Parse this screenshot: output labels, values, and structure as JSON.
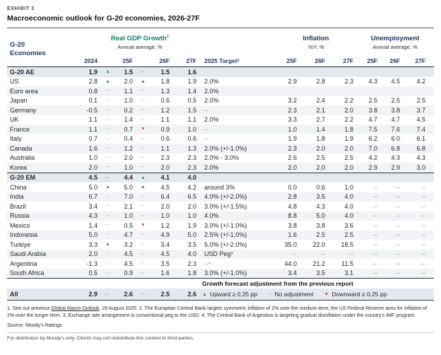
{
  "exhibit": {
    "label": "EXHIBIT 2",
    "title": "Macroeconomic outlook for G-20 economies, 2026-27F"
  },
  "indicators": {
    "up": "▲",
    "down": "▼",
    "dash": "--"
  },
  "colors": {
    "navy": "#1d3866",
    "teal": "#0f7e6d",
    "up_green": "#3f9f38",
    "down_orange": "#e8562b",
    "dash_gray": "#8c9196"
  },
  "header": {
    "economies_line1": "G-20",
    "economies_line2": "Economies",
    "gdp_title": "Real GDP Growth",
    "gdp_sup": "1",
    "gdp_subtitle": "Annual average, %",
    "target_label": "2025 Target",
    "target_sup": "2",
    "inflation_title": "Inflation",
    "inflation_subtitle": "YoY, %",
    "unemployment_title": "Unemployment",
    "unemployment_subtitle": "Annual average, %",
    "gdp_cols": [
      "2024",
      "25F",
      "26F",
      "27F"
    ],
    "inflation_cols": [
      "25F",
      "26F",
      "27F"
    ],
    "unemployment_cols": [
      "25F",
      "26F",
      "27F"
    ]
  },
  "table": {
    "sections": [
      {
        "id": "advanced",
        "rows": [
          {
            "name": "G-20 AE",
            "bold": true,
            "g24": "1.9",
            "i25": "up",
            "g25": "1.5",
            "i26": "dash",
            "g26": "1.5",
            "g27": "1.6",
            "target": "",
            "tsup": "",
            "inf": [
              "",
              "",
              ""
            ],
            "un": [
              "",
              "",
              ""
            ]
          },
          {
            "name": "US",
            "bold": false,
            "g24": "2.8",
            "i25": "up",
            "g25": "2.0",
            "i26": "up",
            "g26": "1.8",
            "g27": "1.9",
            "target": "2.0%",
            "tsup": "",
            "inf": [
              "2.9",
              "2.8",
              "2.3"
            ],
            "un": [
              "4.3",
              "4.5",
              "4.2"
            ]
          },
          {
            "name": "Euro area",
            "bold": false,
            "g24": "0.8",
            "i25": "dash",
            "g25": "1.1",
            "i26": "dash",
            "g26": "1.3",
            "g27": "1.4",
            "target": "2.0%",
            "tsup": "",
            "inf": [
              "",
              "",
              ""
            ],
            "un": [
              "",
              "",
              ""
            ]
          },
          {
            "name": "Japan",
            "bold": false,
            "g24": "0.1",
            "i25": "dash",
            "g25": "1.0",
            "i26": "dash",
            "g26": "0.6",
            "g27": "0.5",
            "target": "2.0%",
            "tsup": "",
            "inf": [
              "3.2",
              "2.4",
              "2.2"
            ],
            "un": [
              "2.5",
              "2.5",
              "2.5"
            ]
          },
          {
            "name": "Germany",
            "bold": false,
            "g24": "-0.5",
            "i25": "dash",
            "g25": "0.2",
            "i26": "dash",
            "g26": "1.2",
            "g27": "1.5",
            "target": "--",
            "tsup": "",
            "inf": [
              "2.3",
              "2.1",
              "2.0"
            ],
            "un": [
              "3.8",
              "3.8",
              "3.7"
            ]
          },
          {
            "name": "UK",
            "bold": false,
            "g24": "1.1",
            "i25": "dash",
            "g25": "1.4",
            "i26": "dash",
            "g26": "1.1",
            "g27": "1.1",
            "target": "2.0%",
            "tsup": "",
            "inf": [
              "3.3",
              "2.7",
              "2.2"
            ],
            "un": [
              "4.7",
              "4.7",
              "4.5"
            ]
          },
          {
            "name": "France",
            "bold": false,
            "g24": "1.1",
            "i25": "dash",
            "g25": "0.7",
            "i26": "down",
            "g26": "0.9",
            "g27": "1.0",
            "target": "--",
            "tsup": "",
            "inf": [
              "1.0",
              "1.4",
              "1.8"
            ],
            "un": [
              "7.5",
              "7.6",
              "7.4"
            ]
          },
          {
            "name": "Italy",
            "bold": false,
            "g24": "0.7",
            "i25": "dash",
            "g25": "0.4",
            "i26": "dash",
            "g26": "0.6",
            "g27": "0.6",
            "target": "--",
            "tsup": "",
            "inf": [
              "1.9",
              "1.8",
              "1.9"
            ],
            "un": [
              "6.2",
              "6.0",
              "6.1"
            ]
          },
          {
            "name": "Canada",
            "bold": false,
            "g24": "1.6",
            "i25": "dash",
            "g25": "1.2",
            "i26": "dash",
            "g26": "1.1",
            "g27": "1.3",
            "target": "2.0% (+/-1.0%)",
            "tsup": "",
            "inf": [
              "2.3",
              "2.0",
              "2.0"
            ],
            "un": [
              "7.0",
              "6.8",
              "6.8"
            ]
          },
          {
            "name": "Australia",
            "bold": false,
            "g24": "1.0",
            "i25": "dash",
            "g25": "2.0",
            "i26": "dash",
            "g26": "2.3",
            "g27": "2.3",
            "target": "2.0% - 3.0%",
            "tsup": "",
            "inf": [
              "2.6",
              "2.5",
              "2.5"
            ],
            "un": [
              "4.2",
              "4.3",
              "4.3"
            ]
          },
          {
            "name": "Korea",
            "bold": false,
            "g24": "2.0",
            "i25": "dash",
            "g25": "1.0",
            "i26": "dash",
            "g26": "2.0",
            "g27": "2.3",
            "target": "2.0%",
            "tsup": "",
            "inf": [
              "2.0",
              "2.0",
              "2.0"
            ],
            "un": [
              "2.9",
              "2.9",
              "3.0"
            ]
          }
        ]
      },
      {
        "id": "emerging",
        "rows": [
          {
            "name": "G-20 EM",
            "bold": true,
            "g24": "4.5",
            "i25": "dash",
            "g25": "4.4",
            "i26": "up",
            "g26": "4.1",
            "g27": "4.0",
            "target": "",
            "tsup": "",
            "inf": [
              "",
              "",
              ""
            ],
            "un": [
              "",
              "",
              ""
            ]
          },
          {
            "name": "China",
            "bold": false,
            "g24": "5.0",
            "i25": "up",
            "g25": "5.0",
            "i26": "up",
            "g26": "4.5",
            "g27": "4.2",
            "target": "around 3%",
            "tsup": "",
            "inf": [
              "0.0",
              "0.6",
              "1.0"
            ],
            "un": [
              "--",
              "--",
              "--"
            ]
          },
          {
            "name": "India",
            "bold": false,
            "g24": "6.7",
            "i25": "dash",
            "g25": "7.0",
            "i26": "dash",
            "g26": "6.4",
            "g27": "6.5",
            "target": "4.0% (+/-2.0%)",
            "tsup": "",
            "inf": [
              "2.8",
              "3.5",
              "4.0"
            ],
            "un": [
              "--",
              "--",
              "--"
            ]
          },
          {
            "name": "Brazil",
            "bold": false,
            "g24": "3.4",
            "i25": "dash",
            "g25": "2.1",
            "i26": "dash",
            "g26": "2.0",
            "g27": "2.0",
            "target": "3.0% (+/-1.5%)",
            "tsup": "",
            "inf": [
              "4.8",
              "4.3",
              "4.0"
            ],
            "un": [
              "--",
              "--",
              "--"
            ]
          },
          {
            "name": "Russia",
            "bold": false,
            "g24": "4.3",
            "i25": "dash",
            "g25": "1.0",
            "i26": "dash",
            "g26": "1.0",
            "g27": "1.0",
            "target": "4.0%",
            "tsup": "",
            "inf": [
              "8.8",
              "5.0",
              "4.0"
            ],
            "un": [
              "--",
              "--",
              "--"
            ]
          },
          {
            "name": "Mexico",
            "bold": false,
            "g24": "1.4",
            "i25": "dash",
            "g25": "0.5",
            "i26": "down",
            "g26": "1.2",
            "g27": "1.9",
            "target": "3.0% (+/-1.0%)",
            "tsup": "",
            "inf": [
              "3.8",
              "3.8",
              "3.6"
            ],
            "un": [
              "--",
              "--",
              "--"
            ]
          },
          {
            "name": "Indonesia",
            "bold": false,
            "g24": "5.0",
            "i25": "dash",
            "g25": "4.7",
            "i26": "dash",
            "g26": "4.9",
            "g27": "5.0",
            "target": "2.5% (+/-1.0%)",
            "tsup": "",
            "inf": [
              "1.6",
              "2.5",
              "2.5"
            ],
            "un": [
              "--",
              "--",
              "--"
            ]
          },
          {
            "name": "Turkiye",
            "bold": false,
            "g24": "3.3",
            "i25": "up",
            "g25": "3.2",
            "i26": "dash",
            "g26": "3.4",
            "g27": "3.5",
            "target": "5.0% (+/-2.0%)",
            "tsup": "",
            "inf": [
              "35.0",
              "22.0",
              "18.5"
            ],
            "un": [
              "--",
              "--",
              "--"
            ]
          },
          {
            "name": "Saudi Arabia",
            "bold": false,
            "g24": "2.0",
            "i25": "dash",
            "g25": "4.5",
            "i26": "dash",
            "g26": "4.5",
            "g27": "4.0",
            "target": "USD Peg",
            "tsup": "3",
            "inf": [
              "--",
              "--",
              "--"
            ],
            "un": [
              "--",
              "--",
              "--"
            ]
          },
          {
            "name": "Argentina",
            "bold": false,
            "g24": "-1.3",
            "i25": "dash",
            "g25": "4.5",
            "i26": "dash",
            "g26": "3.5",
            "g27": "2.3",
            "target": "--",
            "tsup": "4",
            "inf": [
              "44.0",
              "21.2",
              "11.5"
            ],
            "un": [
              "--",
              "--",
              "--"
            ]
          },
          {
            "name": "South Africa",
            "bold": false,
            "g24": "0.5",
            "i25": "dash",
            "g25": "0.9",
            "i26": "dash",
            "g26": "1.6",
            "g27": "1.8",
            "target": "3.0% (+/-1.0%)",
            "tsup": "",
            "inf": [
              "3.4",
              "3.5",
              "3.1"
            ],
            "un": [
              "--",
              "--",
              "--"
            ]
          }
        ]
      }
    ],
    "footer": {
      "all_row": {
        "name": "All",
        "g24": "2.9",
        "g25": "2.6",
        "g26": "2.5",
        "g27": "2.6"
      },
      "legend": {
        "title": "Growth forecast adjustment from the previous report",
        "items": [
          {
            "type": "up",
            "label": "Upward ≥ 0.25 pp"
          },
          {
            "type": "dash",
            "label": "No adjustment"
          },
          {
            "type": "down",
            "label": "Downward ≥ 0.25 pp"
          }
        ]
      }
    }
  },
  "footnotes": {
    "pre": "1. See our previous ",
    "link": "Global Macro Outlook",
    "post": ", 29 August 2025. 2. The European Central Bank targets symmetric inflation of 2% over the medium term; the US Federal Reserve aims for inflation of 2% over the longer term. 3. Exchange rate arrangement is conventional peg to the USD. 4. The Central Bank of Argentina is targeting gradual disinflation under the country's IMF program."
  },
  "source": "Source: Moody's Ratings",
  "distribution": "For distribution by Moody's only. Clients may not redistribute this content to third-parties."
}
